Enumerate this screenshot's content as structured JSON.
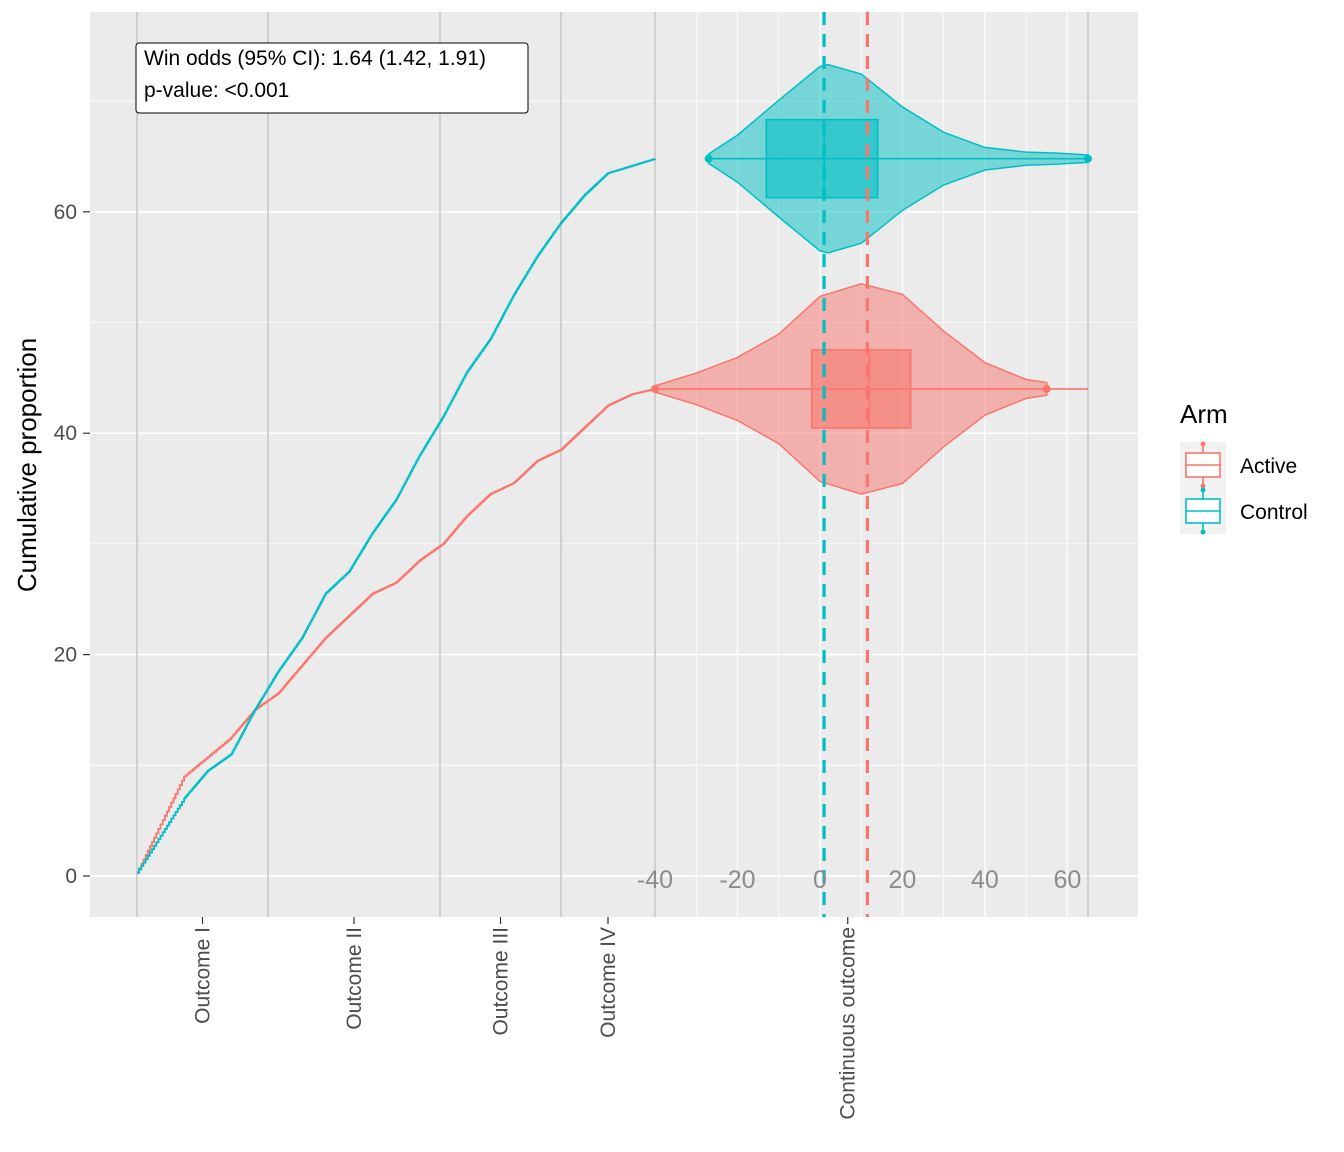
{
  "chart_data": {
    "type": "line",
    "ylabel": "Cumulative proportion",
    "ylim": [
      -6,
      78
    ],
    "y_ticks": [
      0,
      20,
      40,
      60
    ],
    "y_tick_labels": [
      "0",
      "20",
      "40",
      "60"
    ],
    "grid": true,
    "x_categories": [
      "Outcome I",
      "Outcome II",
      "Outcome III",
      "Outcome IV",
      "Continuous outcome"
    ],
    "annotation": {
      "line1": "Win odds (95% CI): 1.64 (1.42, 1.91)",
      "line2": "p-value: <0.001"
    },
    "legend": {
      "title": "Arm",
      "placement": "right",
      "items": [
        {
          "label": "Active",
          "color": "#F8766D"
        },
        {
          "label": "Control",
          "color": "#00BFC4"
        }
      ]
    },
    "cumulative_series": [
      {
        "name": "Active",
        "color": "#F8766D",
        "points": [
          [
            0,
            0.3
          ],
          [
            1,
            9.0
          ],
          [
            2,
            12.5
          ],
          [
            2.5,
            15.0
          ],
          [
            3,
            16.5
          ],
          [
            3.5,
            19.0
          ],
          [
            4,
            21.5
          ],
          [
            4.5,
            23.5
          ],
          [
            5,
            25.5
          ],
          [
            5.5,
            26.5
          ],
          [
            6,
            28.5
          ],
          [
            6.5,
            30.0
          ],
          [
            7,
            32.5
          ],
          [
            7.5,
            34.5
          ],
          [
            8,
            35.5
          ],
          [
            8.5,
            37.5
          ],
          [
            9,
            38.5
          ],
          [
            9.5,
            40.5
          ],
          [
            10,
            42.5
          ],
          [
            10.5,
            43.5
          ],
          [
            11,
            44.0
          ]
        ]
      },
      {
        "name": "Control",
        "color": "#00BFC4",
        "points": [
          [
            0,
            0.3
          ],
          [
            1,
            7.0
          ],
          [
            1.5,
            9.5
          ],
          [
            2,
            11.0
          ],
          [
            2.5,
            15.0
          ],
          [
            3,
            18.5
          ],
          [
            3.5,
            21.5
          ],
          [
            4,
            25.5
          ],
          [
            4.5,
            27.5
          ],
          [
            5,
            31.0
          ],
          [
            5.5,
            34.0
          ],
          [
            6,
            38.0
          ],
          [
            6.5,
            41.5
          ],
          [
            7,
            45.5
          ],
          [
            7.5,
            48.5
          ],
          [
            8,
            52.5
          ],
          [
            8.5,
            56.0
          ],
          [
            9,
            59.0
          ],
          [
            9.5,
            61.5
          ],
          [
            10,
            63.5
          ],
          [
            11,
            64.8
          ]
        ]
      }
    ],
    "continuous_axis": {
      "ticks": [
        -40,
        -20,
        0,
        20,
        40,
        60
      ],
      "tick_labels": [
        "-40",
        "-20",
        "0",
        "20",
        "40",
        "60"
      ],
      "range": [
        -40,
        65
      ]
    },
    "distributions": [
      {
        "name": "Active",
        "color": "#F8766D",
        "center_y": 44.0,
        "half_height": 9.5,
        "min": -40,
        "q1": -2,
        "median": 12,
        "q3": 22,
        "max": 55,
        "mean": 11.5,
        "density": [
          [
            -40,
            0.03
          ],
          [
            -30,
            0.15
          ],
          [
            -20,
            0.3
          ],
          [
            -10,
            0.52
          ],
          [
            0,
            0.88
          ],
          [
            10,
            1.0
          ],
          [
            20,
            0.9
          ],
          [
            30,
            0.55
          ],
          [
            40,
            0.25
          ],
          [
            50,
            0.09
          ],
          [
            55,
            0.06
          ]
        ]
      },
      {
        "name": "Control",
        "color": "#00BFC4",
        "center_y": 64.8,
        "half_height": 8.5,
        "min": -27,
        "q1": -13,
        "median": 1,
        "q3": 14,
        "max": 65,
        "mean": 1.0,
        "density": [
          [
            -27,
            0.05
          ],
          [
            -20,
            0.25
          ],
          [
            -10,
            0.62
          ],
          [
            0,
            0.98
          ],
          [
            2,
            1.0
          ],
          [
            10,
            0.9
          ],
          [
            20,
            0.55
          ],
          [
            30,
            0.28
          ],
          [
            40,
            0.12
          ],
          [
            50,
            0.07
          ],
          [
            57,
            0.06
          ],
          [
            65,
            0.04
          ]
        ]
      }
    ]
  }
}
